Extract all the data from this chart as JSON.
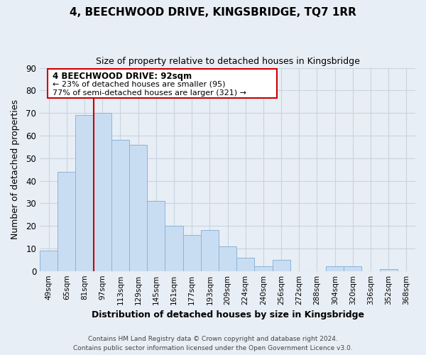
{
  "title": "4, BEECHWOOD DRIVE, KINGSBRIDGE, TQ7 1RR",
  "subtitle": "Size of property relative to detached houses in Kingsbridge",
  "xlabel": "Distribution of detached houses by size in Kingsbridge",
  "ylabel": "Number of detached properties",
  "bar_labels": [
    "49sqm",
    "65sqm",
    "81sqm",
    "97sqm",
    "113sqm",
    "129sqm",
    "145sqm",
    "161sqm",
    "177sqm",
    "193sqm",
    "209sqm",
    "224sqm",
    "240sqm",
    "256sqm",
    "272sqm",
    "288sqm",
    "304sqm",
    "320sqm",
    "336sqm",
    "352sqm",
    "368sqm"
  ],
  "bar_values": [
    9,
    44,
    69,
    70,
    58,
    56,
    31,
    20,
    16,
    18,
    11,
    6,
    2,
    5,
    0,
    0,
    2,
    2,
    0,
    1,
    0
  ],
  "bar_color": "#c9ddf2",
  "bar_edge_color": "#8ab4d8",
  "ylim": [
    0,
    90
  ],
  "yticks": [
    0,
    10,
    20,
    30,
    40,
    50,
    60,
    70,
    80,
    90
  ],
  "property_line_label": "4 BEECHWOOD DRIVE: 92sqm",
  "annotation_line1": "← 23% of detached houses are smaller (95)",
  "annotation_line2": "77% of semi-detached houses are larger (321) →",
  "annotation_box_color": "#ffffff",
  "annotation_box_edge": "#cc0000",
  "line_color": "#cc0000",
  "footer_line1": "Contains HM Land Registry data © Crown copyright and database right 2024.",
  "footer_line2": "Contains public sector information licensed under the Open Government Licence v3.0.",
  "background_color": "#e8eef5",
  "plot_background": "#e8eef5",
  "grid_color": "#c8d4e0"
}
